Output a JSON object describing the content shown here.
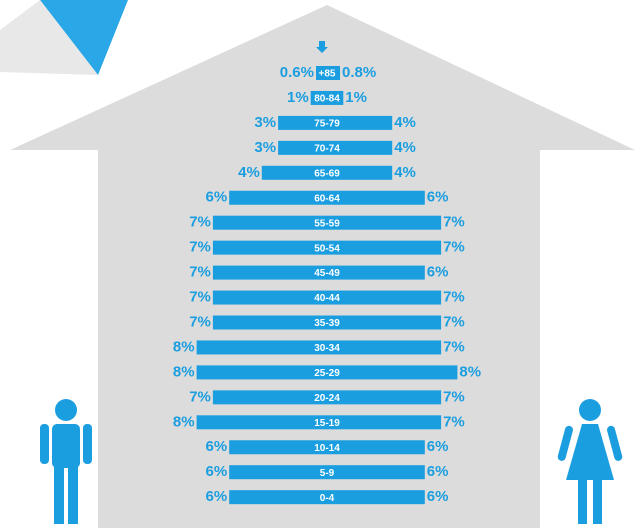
{
  "chart_data": {
    "type": "pyramid",
    "categories": [
      "+85",
      "80-84",
      "75-79",
      "70-74",
      "65-69",
      "60-64",
      "55-59",
      "50-54",
      "45-49",
      "40-44",
      "35-39",
      "30-34",
      "25-29",
      "20-24",
      "15-19",
      "10-14",
      "5-9",
      "0-4"
    ],
    "series": [
      {
        "color": "#1a9ee0",
        "values": [
          0.6,
          1,
          3,
          3,
          4,
          6,
          7,
          7,
          7,
          7,
          7,
          8,
          8,
          7,
          8,
          6,
          6,
          6
        ],
        "value_labels": [
          "0.6%",
          "1%",
          "3%",
          "3%",
          "4%",
          "6%",
          "7%",
          "7%",
          "7%",
          "7%",
          "7%",
          "8%",
          "8%",
          "7%",
          "8%",
          "6%",
          "6%",
          "6%"
        ]
      },
      {
        "color": "#1a9ee0",
        "values": [
          0.8,
          1,
          4,
          4,
          4,
          6,
          7,
          7,
          6,
          7,
          7,
          7,
          8,
          7,
          7,
          6,
          6,
          6
        ],
        "value_labels": [
          "0.8%",
          "1%",
          "4%",
          "4%",
          "4%",
          "6%",
          "7%",
          "7%",
          "6%",
          "7%",
          "7%",
          "7%",
          "8%",
          "7%",
          "7%",
          "6%",
          "6%",
          "6%"
        ]
      }
    ]
  }
}
